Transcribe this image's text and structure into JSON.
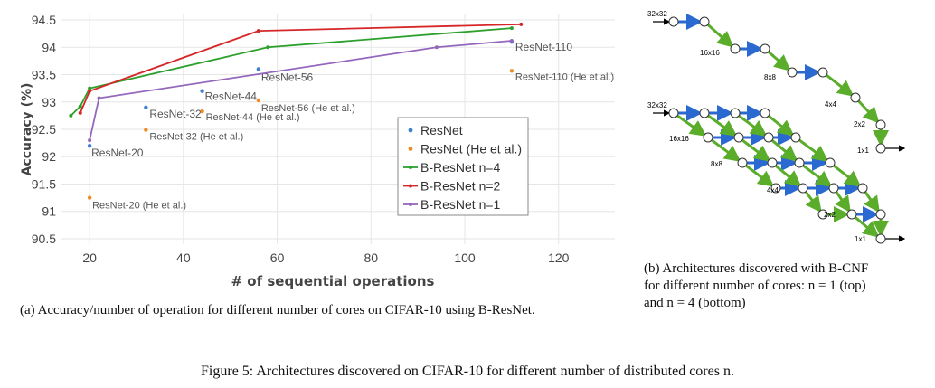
{
  "chart_data": {
    "type": "line",
    "xlabel": "# of sequential operations",
    "ylabel": "Accuracy (%)",
    "xlim": [
      14,
      132
    ],
    "ylim": [
      90.4,
      94.6
    ],
    "xticks": [
      "20",
      "40",
      "60",
      "80",
      "100",
      "120"
    ],
    "yticks": [
      "90.5",
      "91",
      "91.5",
      "92",
      "92.5",
      "93",
      "93.5",
      "94",
      "94.5"
    ],
    "legend_position": "center-right",
    "series": [
      {
        "name": "ResNet",
        "style": "scatter",
        "color": "#3f7fd0",
        "points": [
          {
            "x": 20,
            "y": 92.2,
            "label": "ResNet-20"
          },
          {
            "x": 32,
            "y": 92.9,
            "label": "ResNet-32"
          },
          {
            "x": 44,
            "y": 93.2,
            "label": "ResNet-44"
          },
          {
            "x": 56,
            "y": 93.6,
            "label": "ResNet-56"
          },
          {
            "x": 110,
            "y": 94.1,
            "label": "ResNet-110"
          }
        ]
      },
      {
        "name": "ResNet (He et al.)",
        "style": "scatter",
        "color": "#f08a24",
        "points": [
          {
            "x": 20,
            "y": 91.25,
            "label": "ResNet-20 (He et al.)"
          },
          {
            "x": 32,
            "y": 92.49,
            "label": "ResNet-32 (He et al.)"
          },
          {
            "x": 44,
            "y": 92.83,
            "label": "ResNet-44 (He et al.)"
          },
          {
            "x": 56,
            "y": 93.03,
            "label": "ResNet-56 (He et al.)"
          },
          {
            "x": 110,
            "y": 93.57,
            "label": "ResNet-110 (He et al.)"
          }
        ]
      },
      {
        "name": "B-ResNet n=4",
        "style": "line",
        "color": "#2ca02c",
        "points": [
          {
            "x": 16,
            "y": 92.75
          },
          {
            "x": 18,
            "y": 92.92
          },
          {
            "x": 20,
            "y": 93.25
          },
          {
            "x": 58,
            "y": 94.0
          },
          {
            "x": 110,
            "y": 94.35
          }
        ]
      },
      {
        "name": "B-ResNet n=2",
        "style": "line",
        "color": "#d62728",
        "points": [
          {
            "x": 18,
            "y": 92.8
          },
          {
            "x": 20,
            "y": 93.2
          },
          {
            "x": 56,
            "y": 94.3
          },
          {
            "x": 112,
            "y": 94.42
          }
        ]
      },
      {
        "name": "B-ResNet n=1",
        "style": "line",
        "color": "#9467bd",
        "points": [
          {
            "x": 20,
            "y": 92.3
          },
          {
            "x": 22,
            "y": 93.07
          },
          {
            "x": 94,
            "y": 94.0
          },
          {
            "x": 110,
            "y": 94.12
          }
        ]
      }
    ]
  },
  "diagram": {
    "top": {
      "labels": [
        "32x32",
        "16x16",
        "8x8",
        "4x4",
        "2x2",
        "1x1"
      ]
    },
    "bottom": {
      "labels": [
        "32x32",
        "16x16",
        "8x8",
        "4x4",
        "2x2",
        "1x1"
      ]
    }
  },
  "captions": {
    "a": "(a) Accuracy/number of operation for different number of cores on CIFAR-10 using B-ResNet.",
    "b_line1": "(b) Architectures discovered with B-CNF",
    "b_line2": "for different number of cores:",
    "b_top": "n = 1 (top)",
    "b_line3": "and",
    "b_bottom": "n = 4 (bottom)",
    "figure": "Figure 5: Architectures discovered on CIFAR-10 for different number of distributed cores n."
  }
}
